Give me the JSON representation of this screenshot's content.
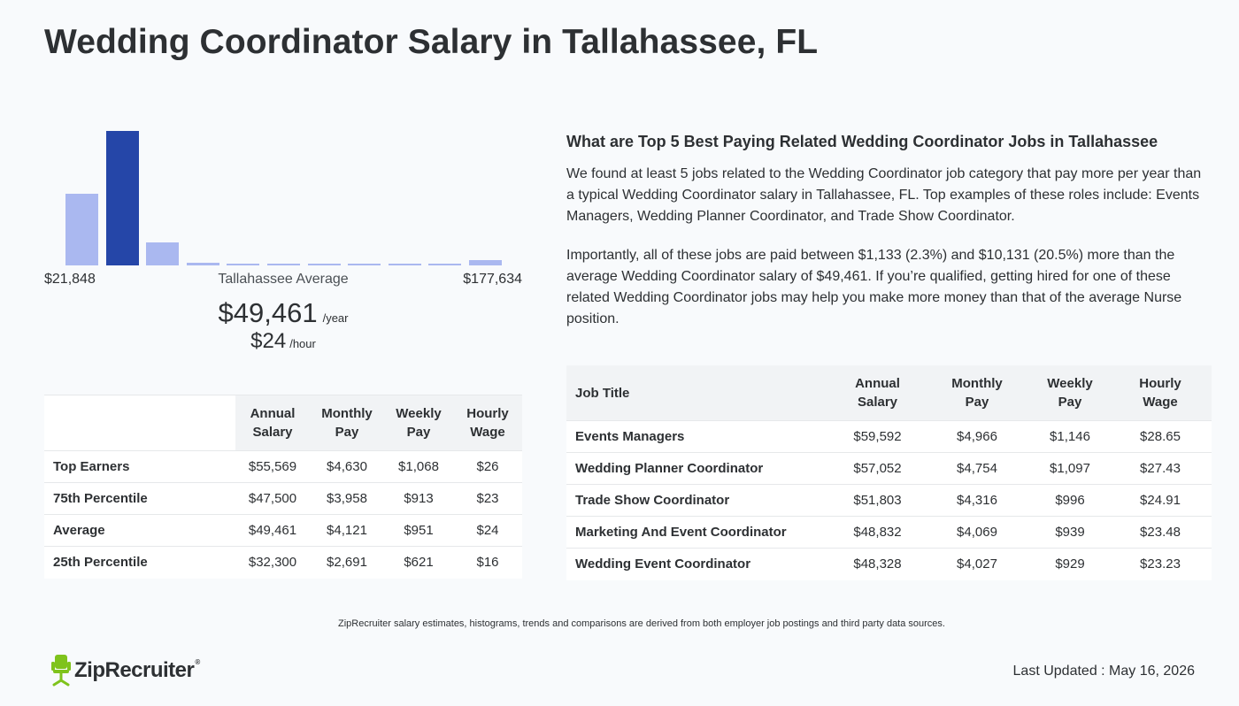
{
  "page_title": "Wedding Coordinator Salary in Tallahassee, FL",
  "chart_data": {
    "type": "bar",
    "values": [
      53,
      100,
      17,
      2,
      1,
      1,
      1,
      1,
      1,
      1,
      4
    ],
    "highlighted_index": 1,
    "min_label": "$21,848",
    "center_label": "Tallahassee Average",
    "max_label": "$177,634",
    "colors": {
      "bar": "#aab8f0",
      "active": "#2546a8"
    }
  },
  "average": {
    "yearly": "$49,461",
    "yearly_unit": "/year",
    "hourly": "$24",
    "hourly_unit": "/hour"
  },
  "percentile_table": {
    "headers": [
      [
        "Annual",
        "Salary"
      ],
      [
        "Monthly",
        "Pay"
      ],
      [
        "Weekly",
        "Pay"
      ],
      [
        "Hourly",
        "Wage"
      ]
    ],
    "rows": [
      {
        "label": "Top Earners",
        "annual": "$55,569",
        "monthly": "$4,630",
        "weekly": "$1,068",
        "hourly": "$26"
      },
      {
        "label": "75th Percentile",
        "annual": "$47,500",
        "monthly": "$3,958",
        "weekly": "$913",
        "hourly": "$23"
      },
      {
        "label": "Average",
        "annual": "$49,461",
        "monthly": "$4,121",
        "weekly": "$951",
        "hourly": "$24"
      },
      {
        "label": "25th Percentile",
        "annual": "$32,300",
        "monthly": "$2,691",
        "weekly": "$621",
        "hourly": "$16"
      }
    ]
  },
  "related": {
    "heading": "What are Top 5 Best Paying Related Wedding Coordinator Jobs in Tallahassee",
    "paragraph1": "We found at least 5 jobs related to the Wedding Coordinator job category that pay more per year than a typical Wedding Coordinator salary in Tallahassee, FL. Top examples of these roles include: Events Managers, Wedding Planner Coordinator, and Trade Show Coordinator.",
    "paragraph2": "Importantly, all of these jobs are paid between $1,133 (2.3%) and $10,131 (20.5%) more than the average Wedding Coordinator salary of $49,461. If you’re qualified, getting hired for one of these related Wedding Coordinator jobs may help you make more money than that of the average Nurse position."
  },
  "jobs_table": {
    "headers": {
      "title": "Job Title",
      "annual": [
        "Annual",
        "Salary"
      ],
      "monthly": [
        "Monthly",
        "Pay"
      ],
      "weekly": [
        "Weekly",
        "Pay"
      ],
      "hourly": [
        "Hourly",
        "Wage"
      ]
    },
    "rows": [
      {
        "title": "Events Managers",
        "annual": "$59,592",
        "monthly": "$4,966",
        "weekly": "$1,146",
        "hourly": "$28.65"
      },
      {
        "title": "Wedding Planner Coordinator",
        "annual": "$57,052",
        "monthly": "$4,754",
        "weekly": "$1,097",
        "hourly": "$27.43"
      },
      {
        "title": "Trade Show Coordinator",
        "annual": "$51,803",
        "monthly": "$4,316",
        "weekly": "$996",
        "hourly": "$24.91"
      },
      {
        "title": "Marketing And Event Coordinator",
        "annual": "$48,832",
        "monthly": "$4,069",
        "weekly": "$939",
        "hourly": "$23.48"
      },
      {
        "title": "Wedding Event Coordinator",
        "annual": "$48,328",
        "monthly": "$4,027",
        "weekly": "$929",
        "hourly": "$23.23"
      }
    ]
  },
  "disclaimer": "ZipRecruiter salary estimates, histograms, trends and comparisons are derived from both employer job postings and third party data sources.",
  "logo": {
    "text": "ZipRecruiter",
    "reg": "®",
    "icon": "chair-icon",
    "icon_color": "#7fc31c"
  },
  "last_updated": "Last Updated : May 16, 2026"
}
